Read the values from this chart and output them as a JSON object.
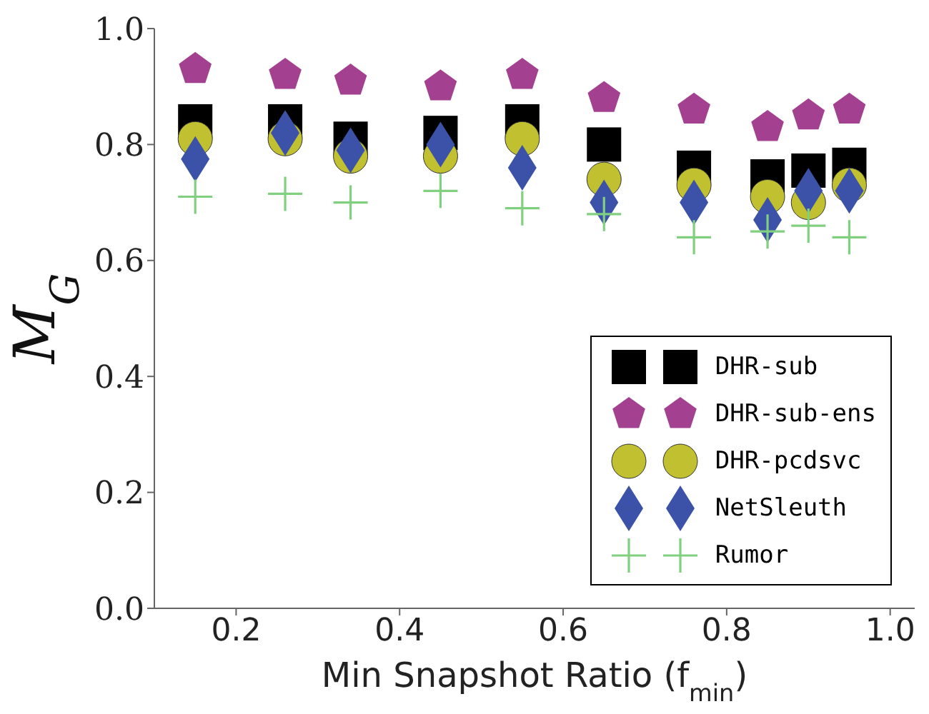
{
  "chart_data": {
    "type": "scatter",
    "xlabel": "Min Snapshot Ratio (f$_{min}$)",
    "ylabel": "M$_{G}$",
    "x": [
      0.15,
      0.26,
      0.34,
      0.45,
      0.55,
      0.65,
      0.76,
      0.85,
      0.9,
      0.95
    ],
    "xlim": [
      0.1,
      1.03
    ],
    "xticks": [
      0.2,
      0.4,
      0.6,
      0.8,
      {
        "value": 1,
        "label": "1.0"
      }
    ],
    "ylim": [
      0,
      1
    ],
    "yticks": [
      {
        "value": 0,
        "label": "0.0"
      },
      0.2,
      0.4,
      0.6,
      0.8,
      {
        "value": 1,
        "label": "1.0"
      }
    ],
    "grid": false,
    "legend": "bottom right",
    "series": [
      {
        "name": "DHR-sub",
        "color": "#000000",
        "marker": "square",
        "values": [
          0.84,
          0.84,
          0.81,
          0.82,
          0.84,
          0.8,
          0.76,
          0.745,
          0.755,
          0.765
        ]
      },
      {
        "name": "DHR-sub-ens",
        "color": "#a3408f",
        "values": [
          0.93,
          0.92,
          0.91,
          0.9,
          0.92,
          0.88,
          0.86,
          0.83,
          0.85,
          0.86
        ]
      },
      {
        "name": "DHR-pcdsvc",
        "color": "#c0c030",
        "marker": "circle",
        "values": [
          0.81,
          0.81,
          0.78,
          0.78,
          0.81,
          0.74,
          0.73,
          0.71,
          0.7,
          0.73
        ]
      },
      {
        "name": "NetSleuth",
        "color": "#3b52a8",
        "marker": "diamond",
        "values": [
          0.775,
          0.82,
          0.79,
          0.8,
          0.76,
          0.7,
          0.7,
          0.67,
          0.72,
          0.72
        ]
      },
      {
        "name": "Rumor",
        "color": "#80d080",
        "marker": "cross",
        "values": [
          0.71,
          0.715,
          0.7,
          0.72,
          0.69,
          0.68,
          0.64,
          0.65,
          0.66,
          0.64
        ]
      }
    ]
  }
}
